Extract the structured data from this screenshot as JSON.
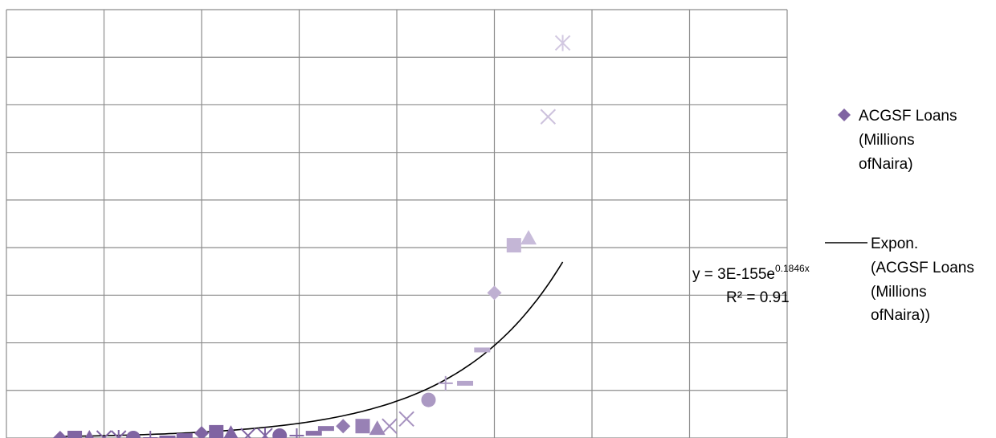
{
  "chart_data": {
    "type": "scatter",
    "title": "",
    "xlabel": "",
    "ylabel": "",
    "grid": true,
    "legend_position": "right",
    "xlim": [
      0,
      16
    ],
    "ylim": [
      0,
      9
    ],
    "series": [
      {
        "name": "ACGSF Loans (Millions ofNaira)",
        "color": "#8064a2",
        "points": [
          {
            "x": 1.1,
            "y": 0.0,
            "marker": "diamond"
          },
          {
            "x": 1.4,
            "y": 0.0,
            "marker": "square"
          },
          {
            "x": 1.7,
            "y": 0.0,
            "marker": "triangle"
          },
          {
            "x": 2.0,
            "y": 0.0,
            "marker": "x"
          },
          {
            "x": 2.3,
            "y": 0.0,
            "marker": "star"
          },
          {
            "x": 2.6,
            "y": 0.0,
            "marker": "circle"
          },
          {
            "x": 2.95,
            "y": 0.0,
            "marker": "plus"
          },
          {
            "x": 3.3,
            "y": 0.0,
            "marker": "dash"
          },
          {
            "x": 3.65,
            "y": 0.05,
            "marker": "dash"
          },
          {
            "x": 4.0,
            "y": 0.1,
            "marker": "diamond"
          },
          {
            "x": 4.3,
            "y": 0.12,
            "marker": "square"
          },
          {
            "x": 4.6,
            "y": 0.1,
            "marker": "triangle"
          },
          {
            "x": 4.95,
            "y": 0.05,
            "marker": "x"
          },
          {
            "x": 5.3,
            "y": 0.05,
            "marker": "star"
          },
          {
            "x": 5.6,
            "y": 0.05,
            "marker": "circle"
          },
          {
            "x": 5.95,
            "y": 0.05,
            "marker": "plus"
          },
          {
            "x": 6.3,
            "y": 0.1,
            "marker": "dash"
          },
          {
            "x": 6.55,
            "y": 0.2,
            "marker": "dash"
          },
          {
            "x": 6.9,
            "y": 0.25,
            "marker": "diamond"
          },
          {
            "x": 7.3,
            "y": 0.25,
            "marker": "square"
          },
          {
            "x": 7.6,
            "y": 0.2,
            "marker": "triangle"
          },
          {
            "x": 7.85,
            "y": 0.25,
            "marker": "x"
          },
          {
            "x": 8.2,
            "y": 0.4,
            "marker": "x"
          },
          {
            "x": 8.65,
            "y": 0.8,
            "marker": "circle"
          },
          {
            "x": 9.0,
            "y": 1.15,
            "marker": "plus"
          },
          {
            "x": 9.4,
            "y": 1.15,
            "marker": "dash"
          },
          {
            "x": 9.75,
            "y": 1.85,
            "marker": "dash"
          },
          {
            "x": 10.0,
            "y": 3.05,
            "marker": "diamond"
          },
          {
            "x": 10.4,
            "y": 4.05,
            "marker": "square"
          },
          {
            "x": 10.7,
            "y": 4.2,
            "marker": "triangle"
          },
          {
            "x": 11.1,
            "y": 6.75,
            "marker": "x"
          },
          {
            "x": 11.4,
            "y": 8.3,
            "marker": "star"
          }
        ]
      }
    ],
    "trendline": {
      "name": "Expon. (ACGSF Loans (Millions ofNaira))",
      "type": "exponential",
      "equation": "y = 3E-155e",
      "exponent": "0.1846x",
      "r_squared": "R² = 0.91",
      "color": "#000000",
      "x_range": [
        1.1,
        11.4
      ]
    },
    "legend": {
      "marker_label": [
        "ACGSF Loans",
        "(Millions",
        "ofNaira)"
      ],
      "line_label": [
        "Expon.",
        "(ACGSF Loans",
        "(Millions",
        "ofNaira))"
      ]
    }
  }
}
